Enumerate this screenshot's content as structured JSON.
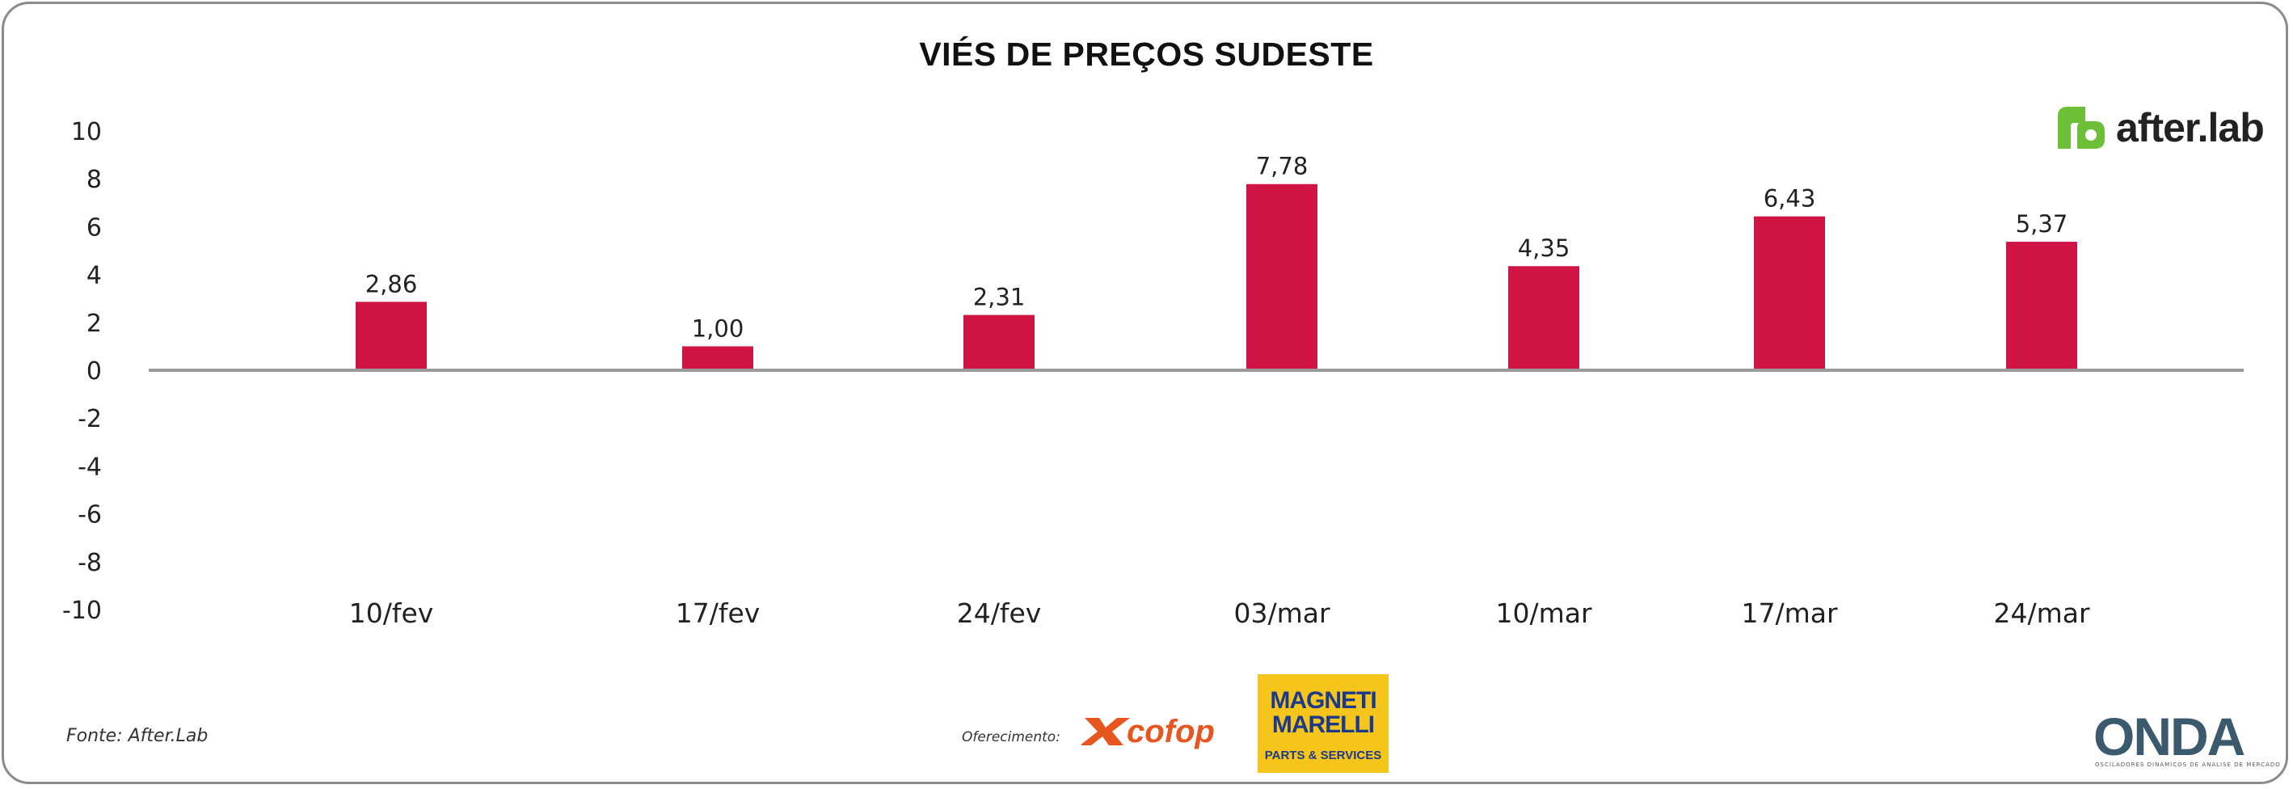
{
  "chart_data": {
    "type": "bar",
    "title": "VIÉS DE PREÇOS SUDESTE",
    "categories": [
      "10/fev",
      "17/fev",
      "24/fev",
      "03/mar",
      "10/mar",
      "17/mar",
      "24/mar"
    ],
    "values": [
      2.86,
      1.0,
      2.31,
      7.78,
      4.35,
      6.43,
      5.37
    ],
    "data_labels": [
      "2,86",
      "1,00",
      "2,31",
      "7,78",
      "4,35",
      "6,43",
      "5,37"
    ],
    "yticks": [
      10,
      8,
      6,
      4,
      2,
      0,
      -2,
      -4,
      -6,
      -8,
      -10
    ],
    "ytick_labels": [
      "10",
      "8",
      "6",
      "4",
      "2",
      "0",
      "-2",
      "-4",
      "-6",
      "-8",
      "-10"
    ],
    "ylim": [
      -10,
      10
    ],
    "xlabel": "",
    "ylabel": "",
    "grid": false,
    "bar_color": "#d01443",
    "axis_color": "#9a9a9a"
  },
  "footer": {
    "source": "Fonte: After.Lab",
    "offer": "Oferecimento:",
    "cofop": "cofop",
    "magneti_line1": "MAGNETI",
    "magneti_line2": "MARELLI",
    "magneti_sub": "PARTS & SERVICES",
    "onda": "ONDA",
    "onda_sub": "OSCILADORES DINAMICOS DE ANALISE DE MERCADO"
  },
  "brand": {
    "after_lab": "after.lab",
    "after_color": "#6cbf36"
  }
}
